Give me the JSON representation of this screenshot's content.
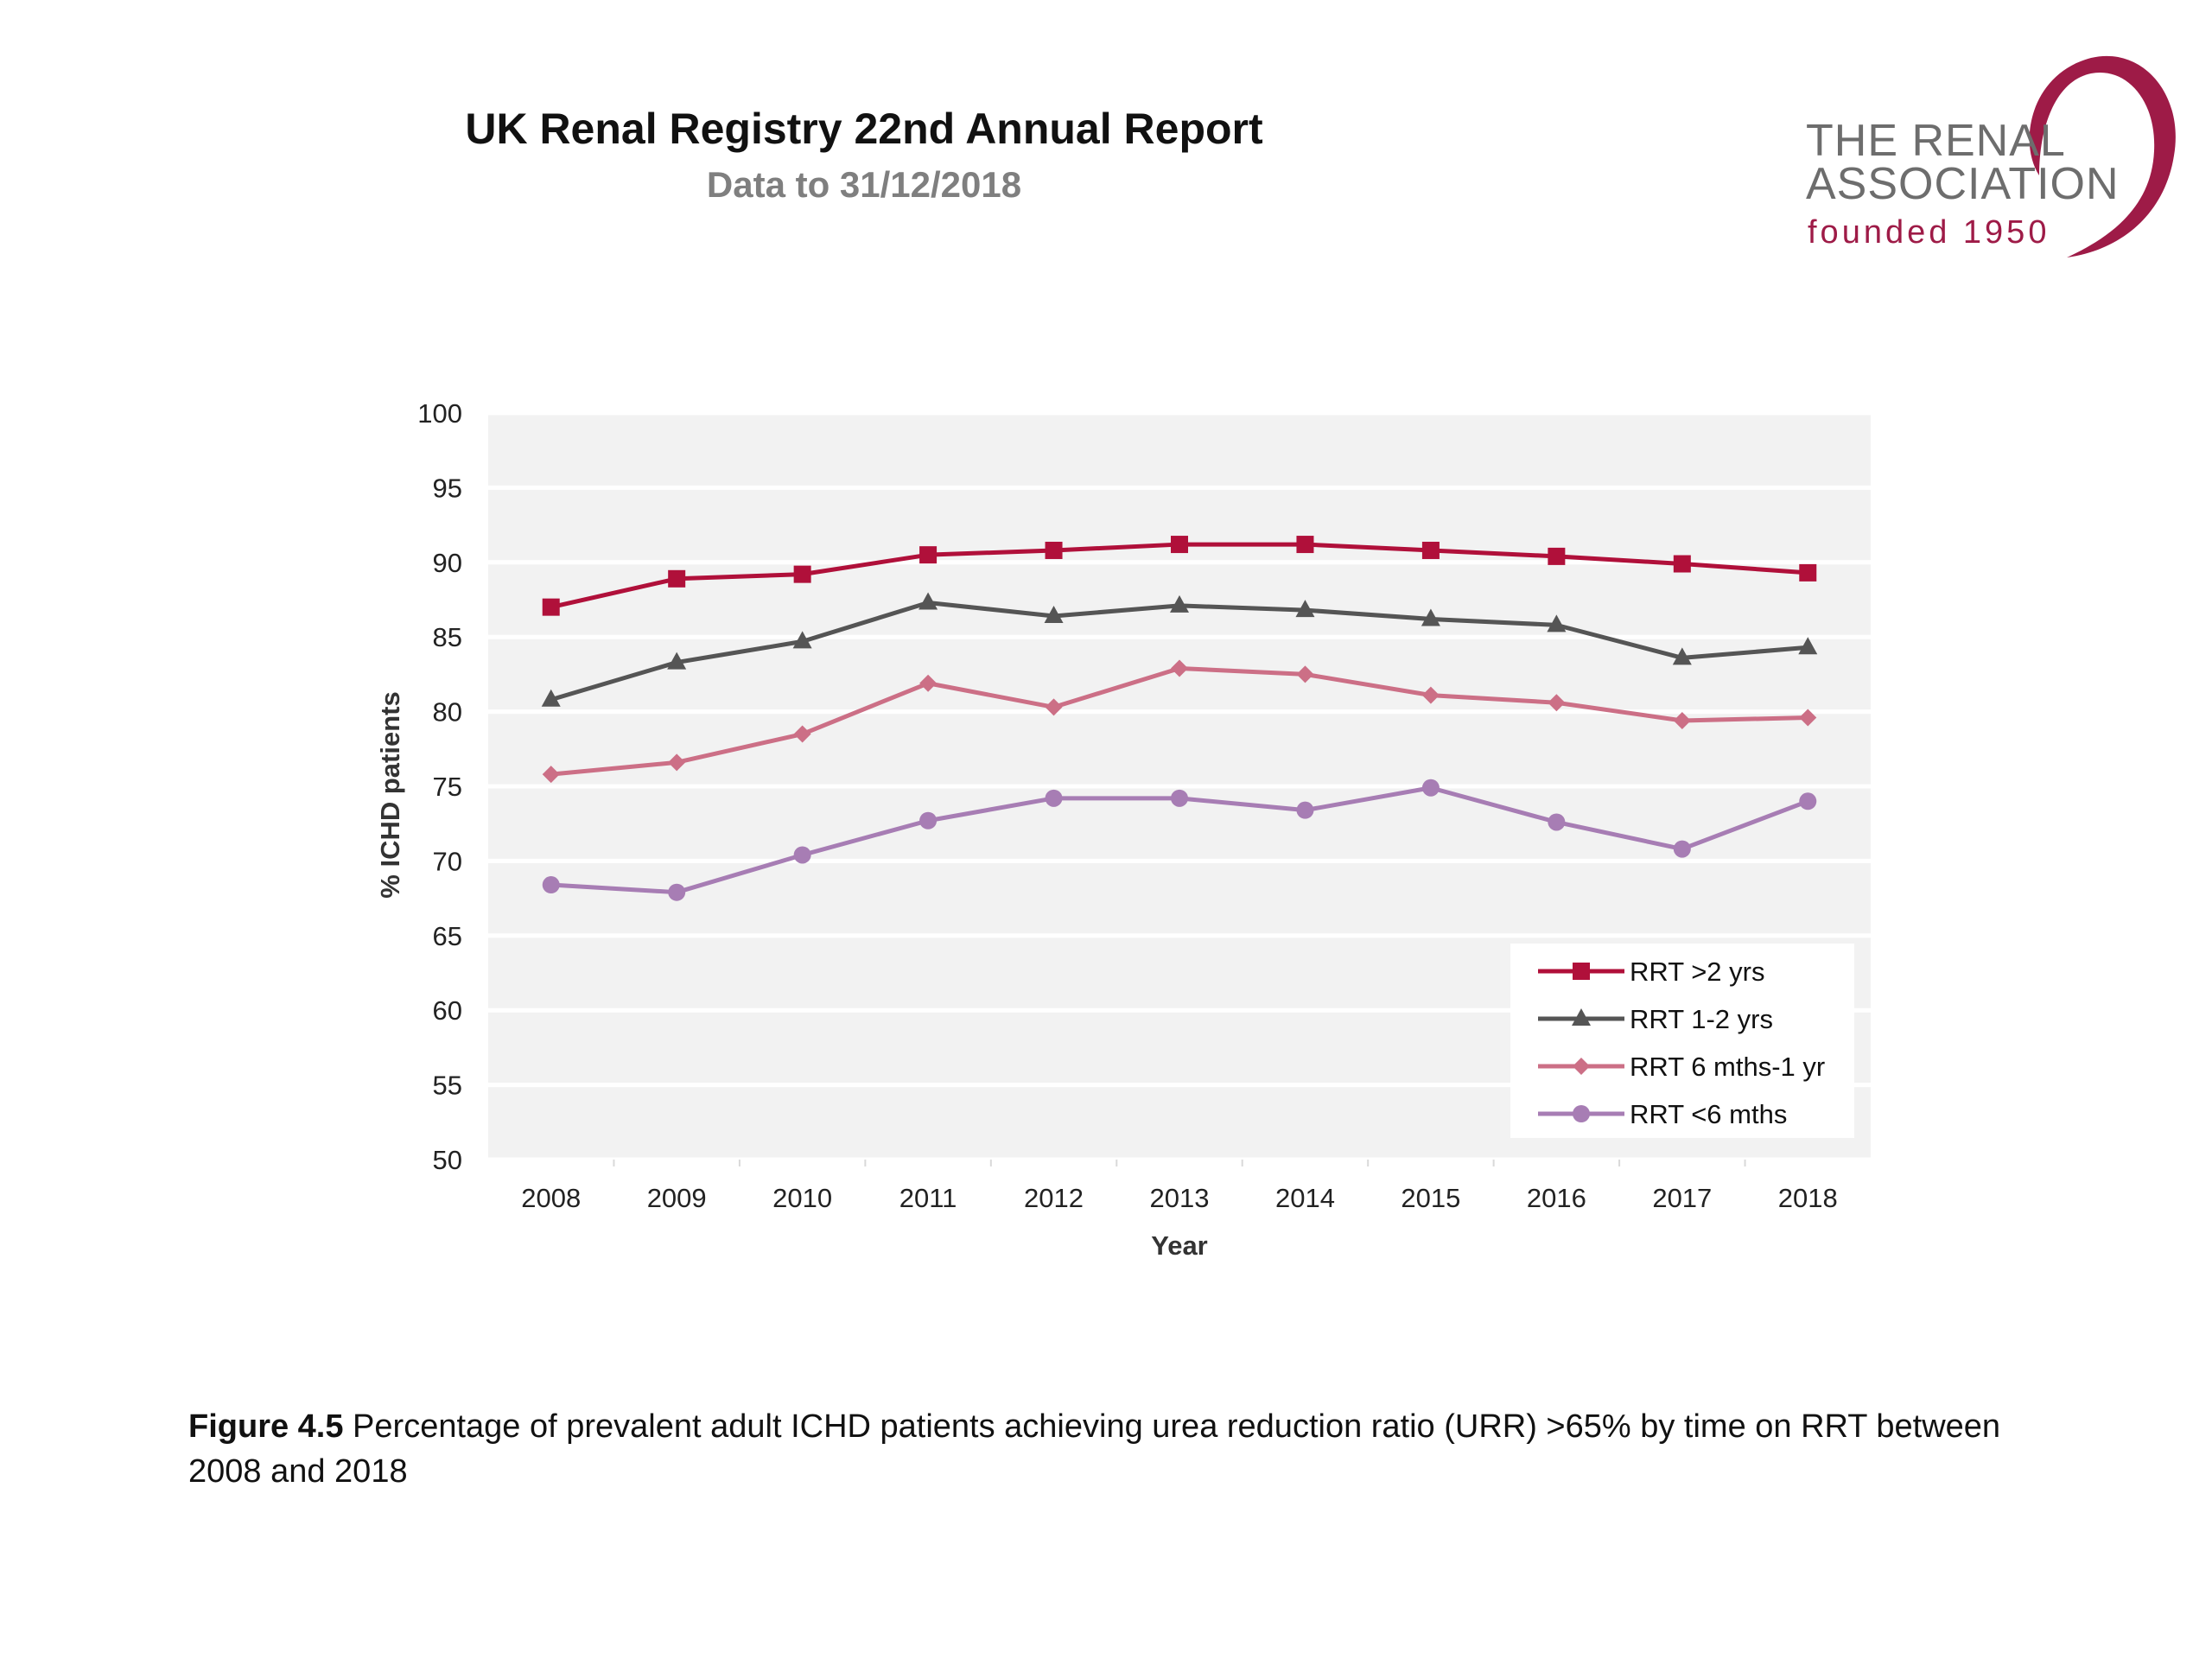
{
  "header": {
    "title": "UK Renal Registry 22nd Annual Report",
    "subtitle": "Data to 31/12/2018"
  },
  "logo": {
    "line1": "THE RENAL",
    "line2": "ASSOCIATION",
    "line3": "founded 1950",
    "swoosh_color": "#9e1b47"
  },
  "caption": {
    "figure_label": "Figure 4.5",
    "text": " Percentage of prevalent adult ICHD patients achieving urea reduction ratio (URR) >65% by time on RRT between 2008 and 2018"
  },
  "chart_data": {
    "type": "line",
    "xlabel": "Year",
    "ylabel": "% ICHD patients",
    "ylim": [
      50,
      100
    ],
    "yticks": [
      50,
      55,
      60,
      65,
      70,
      75,
      80,
      85,
      90,
      95,
      100
    ],
    "categories": [
      "2008",
      "2009",
      "2010",
      "2011",
      "2012",
      "2013",
      "2014",
      "2015",
      "2016",
      "2017",
      "2018"
    ],
    "grid": true,
    "plot_background": "#f2f2f2",
    "legend_position": "bottom-right",
    "series": [
      {
        "name": "RRT >2 yrs",
        "color": "#b0103a",
        "marker": "square",
        "values": [
          87.0,
          88.9,
          89.2,
          90.5,
          90.8,
          91.2,
          91.2,
          90.8,
          90.4,
          89.9,
          89.3
        ]
      },
      {
        "name": "RRT 1-2 yrs",
        "color": "#555555",
        "marker": "triangle",
        "values": [
          80.8,
          83.3,
          84.7,
          87.3,
          86.4,
          87.1,
          86.8,
          86.2,
          85.8,
          83.6,
          84.3
        ]
      },
      {
        "name": "RRT 6 mths-1 yr",
        "color": "#cc6f86",
        "marker": "diamond",
        "values": [
          75.8,
          76.6,
          78.5,
          81.9,
          80.3,
          82.9,
          82.5,
          81.1,
          80.6,
          79.4,
          79.6
        ]
      },
      {
        "name": "RRT <6 mths",
        "color": "#a77db4",
        "marker": "circle",
        "values": [
          68.4,
          67.9,
          70.4,
          72.7,
          74.2,
          74.2,
          73.4,
          74.9,
          72.6,
          70.8,
          74.0
        ]
      }
    ]
  }
}
